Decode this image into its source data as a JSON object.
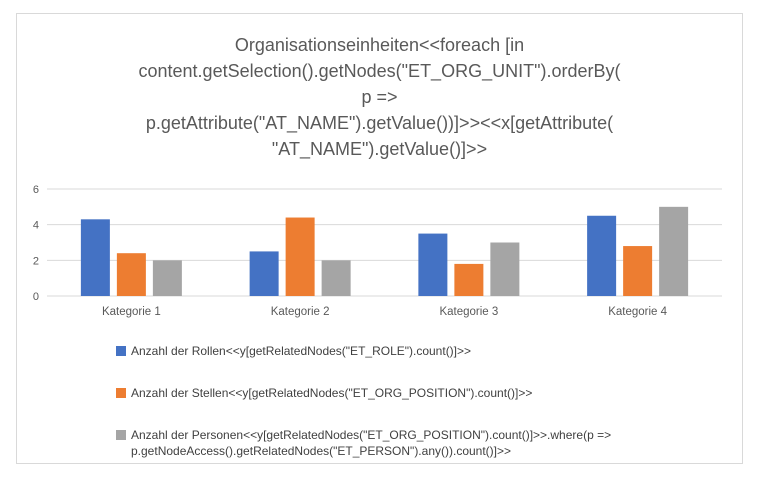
{
  "chart_data": {
    "type": "bar",
    "title": "Organisationseinheiten<<foreach [in content.getSelection().getNodes(\"ET_ORG_UNIT\").orderBy( p => p.getAttribute(\"AT_NAME\").getValue())]>><<x[getAttribute( \"AT_NAME\").getValue()]>>",
    "title_lines": [
      "Organisationseinheiten<<foreach [in",
      "content.getSelection().getNodes(\"ET_ORG_UNIT\").orderBy(",
      "p =>",
      "p.getAttribute(\"AT_NAME\").getValue())]>><<x[getAttribute(",
      "\"AT_NAME\").getValue()]>>"
    ],
    "categories": [
      "Kategorie 1",
      "Kategorie 2",
      "Kategorie 3",
      "Kategorie 4"
    ],
    "series": [
      {
        "name": "Anzahl der Rollen<<y[getRelatedNodes(\"ET_ROLE\").count()]>>",
        "color": "#4472C4",
        "values": [
          4.3,
          2.5,
          3.5,
          4.5
        ]
      },
      {
        "name": "Anzahl der Stellen<<y[getRelatedNodes(\"ET_ORG_POSITION\").count()]>>",
        "color": "#ED7D31",
        "values": [
          2.4,
          4.4,
          1.8,
          2.8
        ]
      },
      {
        "name": "Anzahl der Personen<<y[getRelatedNodes(\"ET_ORG_POSITION\").count()]>>.where(p => p.getNodeAccess().getRelatedNodes(\"ET_PERSON\").any()).count()]>>",
        "color": "#A5A5A5",
        "values": [
          2,
          2,
          3,
          5
        ]
      }
    ],
    "y_ticks": [
      0,
      2,
      4,
      6
    ],
    "ylim": [
      0,
      6
    ],
    "xlabel": "",
    "ylabel": "",
    "grid": true,
    "legend_position": "bottom-left",
    "colors": {
      "gridline": "#D9D9D9",
      "frame_border": "#D9D9D9",
      "axis_text": "#595959",
      "title_text": "#595959",
      "legend_text": "#404040"
    }
  }
}
